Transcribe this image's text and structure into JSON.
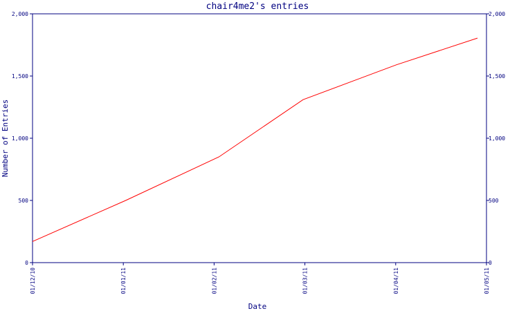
{
  "chart_data": {
    "type": "line",
    "title": "chair4me2's entries",
    "xlabel": "Date",
    "ylabel": "Number of Entries",
    "x_ticks": [
      "01/12/10",
      "01/01/11",
      "01/02/11",
      "01/03/11",
      "01/04/11",
      "01/05/11"
    ],
    "y_ticks": [
      0,
      500,
      1000,
      1500,
      2000
    ],
    "y_tick_labels": [
      "0",
      "500",
      "1,000",
      "1,500",
      "2,000"
    ],
    "ylim": [
      0,
      2000
    ],
    "xlim": [
      "2010-12-01",
      "2011-05-01"
    ],
    "right_axis_mirrors_left": true,
    "grid": false,
    "series": [
      {
        "color": "#ff0000",
        "points": [
          {
            "x": "2010-12-01",
            "y": 170
          },
          {
            "x": "2011-01-01",
            "y": 500
          },
          {
            "x": "2011-02-01",
            "y": 850
          },
          {
            "x": "2011-03-01",
            "y": 1310
          },
          {
            "x": "2011-04-01",
            "y": 1590
          },
          {
            "x": "2011-04-28",
            "y": 1805
          }
        ]
      }
    ]
  }
}
